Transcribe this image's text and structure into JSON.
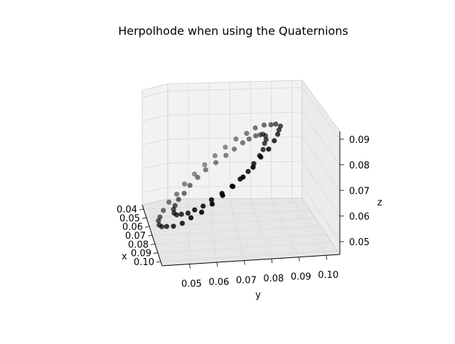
{
  "chart_data": {
    "type": "scatter",
    "projection": "3d",
    "title": "Herpolhode when using the Quaternions",
    "xlabel": "x",
    "ylabel": "y",
    "zlabel": "z",
    "x_ticks": [
      "0.04",
      "0.05",
      "0.06",
      "0.07",
      "0.08",
      "0.09",
      "0.10"
    ],
    "y_ticks": [
      "0.05",
      "0.06",
      "0.07",
      "0.08",
      "0.09",
      "0.10"
    ],
    "z_ticks": [
      "0.05",
      "0.06",
      "0.07",
      "0.08",
      "0.09"
    ],
    "xlim": [
      0.035,
      0.105
    ],
    "ylim": [
      0.04,
      0.105
    ],
    "zlim": [
      0.045,
      0.093
    ],
    "grid": true,
    "marker_color": "#000000",
    "series": [
      {
        "x": [
          0.07,
          0.074,
          0.079,
          0.084,
          0.088,
          0.091,
          0.094,
          0.096,
          0.097,
          0.097,
          0.096,
          0.094,
          0.091,
          0.088,
          0.084,
          0.079,
          0.074,
          0.07,
          0.065,
          0.061,
          0.056,
          0.052,
          0.049,
          0.046,
          0.044,
          0.043,
          0.043,
          0.044,
          0.046,
          0.049,
          0.052,
          0.056,
          0.061,
          0.065,
          0.07,
          0.074,
          0.078,
          0.082,
          0.085,
          0.088,
          0.09,
          0.091,
          0.092,
          0.091,
          0.09,
          0.088,
          0.085,
          0.082,
          0.078,
          0.074,
          0.07,
          0.066,
          0.062,
          0.058,
          0.055,
          0.052,
          0.05,
          0.049,
          0.048,
          0.049,
          0.05,
          0.052,
          0.055,
          0.058,
          0.062,
          0.066
        ],
        "y": [
          0.1,
          0.099,
          0.098,
          0.096,
          0.093,
          0.089,
          0.085,
          0.08,
          0.075,
          0.07,
          0.065,
          0.06,
          0.055,
          0.051,
          0.047,
          0.044,
          0.042,
          0.041,
          0.041,
          0.042,
          0.044,
          0.047,
          0.051,
          0.055,
          0.06,
          0.065,
          0.07,
          0.075,
          0.08,
          0.085,
          0.089,
          0.093,
          0.096,
          0.098,
          0.093,
          0.092,
          0.091,
          0.089,
          0.086,
          0.083,
          0.079,
          0.075,
          0.07,
          0.065,
          0.061,
          0.057,
          0.054,
          0.051,
          0.049,
          0.048,
          0.048,
          0.049,
          0.051,
          0.054,
          0.057,
          0.061,
          0.065,
          0.07,
          0.075,
          0.079,
          0.083,
          0.086,
          0.089,
          0.091,
          0.092,
          0.093
        ],
        "z": [
          0.091,
          0.09,
          0.089,
          0.087,
          0.084,
          0.081,
          0.077,
          0.073,
          0.069,
          0.065,
          0.061,
          0.057,
          0.054,
          0.051,
          0.049,
          0.048,
          0.047,
          0.047,
          0.048,
          0.049,
          0.051,
          0.054,
          0.057,
          0.061,
          0.065,
          0.069,
          0.073,
          0.077,
          0.081,
          0.084,
          0.087,
          0.089,
          0.09,
          0.091,
          0.085,
          0.084,
          0.082,
          0.08,
          0.077,
          0.074,
          0.071,
          0.068,
          0.065,
          0.062,
          0.059,
          0.057,
          0.055,
          0.054,
          0.053,
          0.053,
          0.054,
          0.055,
          0.057,
          0.059,
          0.062,
          0.065,
          0.068,
          0.071,
          0.074,
          0.077,
          0.08,
          0.082,
          0.084,
          0.085,
          0.086,
          0.086
        ]
      }
    ]
  }
}
